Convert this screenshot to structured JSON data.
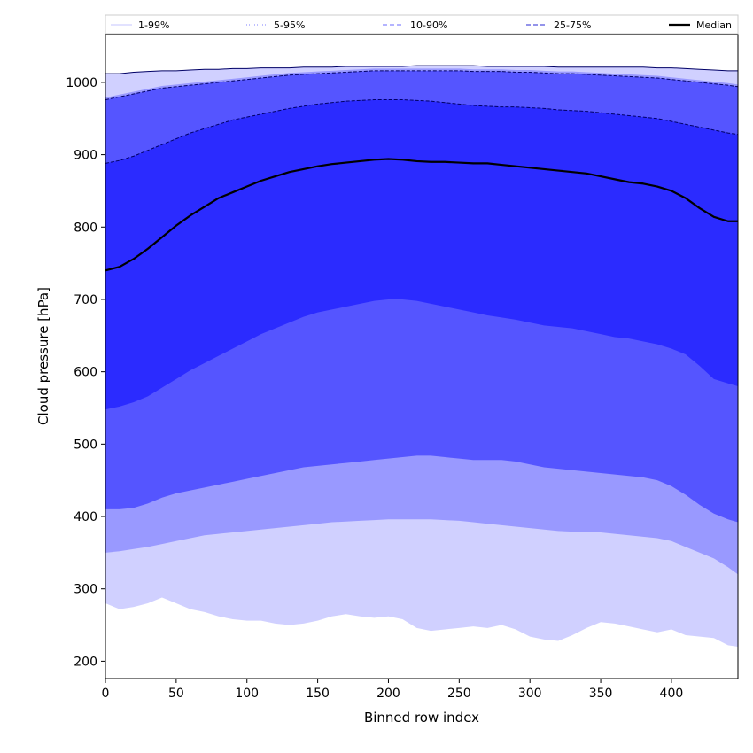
{
  "chart_data": {
    "type": "area",
    "xlabel": "Binned row index",
    "ylabel": "Cloud pressure [hPa]",
    "xlim": [
      0,
      447
    ],
    "ylim": [
      176,
      1066
    ],
    "xticks": [
      0,
      50,
      100,
      150,
      200,
      250,
      300,
      350,
      400
    ],
    "yticks": [
      200,
      300,
      400,
      500,
      600,
      700,
      800,
      900,
      1000
    ],
    "grid": false,
    "legend_position": "top",
    "x": [
      0,
      10,
      20,
      30,
      40,
      50,
      60,
      70,
      80,
      90,
      100,
      110,
      120,
      130,
      140,
      150,
      160,
      170,
      180,
      190,
      200,
      210,
      220,
      230,
      240,
      250,
      260,
      270,
      280,
      290,
      300,
      310,
      320,
      330,
      340,
      350,
      360,
      370,
      380,
      390,
      400,
      410,
      420,
      430,
      440,
      447
    ],
    "series": [
      {
        "name": "1-99%",
        "color": "#d0d0ff",
        "line_style": "solid",
        "lower": [
          280,
          272,
          275,
          280,
          288,
          280,
          272,
          268,
          262,
          258,
          256,
          256,
          252,
          250,
          252,
          256,
          262,
          265,
          262,
          260,
          262,
          258,
          246,
          242,
          244,
          246,
          248,
          246,
          250,
          244,
          234,
          230,
          228,
          236,
          246,
          254,
          252,
          248,
          244,
          240,
          244,
          236,
          234,
          232,
          222,
          220
        ],
        "upper": [
          1012,
          1012,
          1014,
          1015,
          1016,
          1016,
          1017,
          1018,
          1018,
          1019,
          1019,
          1020,
          1020,
          1020,
          1021,
          1021,
          1021,
          1022,
          1022,
          1022,
          1022,
          1022,
          1023,
          1023,
          1023,
          1023,
          1023,
          1022,
          1022,
          1022,
          1022,
          1022,
          1021,
          1021,
          1021,
          1021,
          1021,
          1021,
          1021,
          1020,
          1020,
          1019,
          1018,
          1017,
          1016,
          1016
        ]
      },
      {
        "name": "5-95%",
        "color": "#9999ff",
        "line_style": "dotted",
        "lower": [
          350,
          352,
          355,
          358,
          362,
          366,
          370,
          374,
          376,
          378,
          380,
          382,
          384,
          386,
          388,
          390,
          392,
          393,
          394,
          395,
          396,
          396,
          396,
          396,
          395,
          394,
          392,
          390,
          388,
          386,
          384,
          382,
          380,
          379,
          378,
          378,
          376,
          374,
          372,
          370,
          366,
          358,
          350,
          342,
          330,
          320
        ]
      },
      {
        "name": "10-90%",
        "color": "#5555ff",
        "line_style": "dashed",
        "lower": [
          410,
          410,
          412,
          418,
          426,
          432,
          436,
          440,
          444,
          448,
          452,
          456,
          460,
          464,
          468,
          470,
          472,
          474,
          476,
          478,
          480,
          482,
          484,
          484,
          482,
          480,
          478,
          478,
          478,
          476,
          472,
          468,
          466,
          464,
          462,
          460,
          458,
          456,
          454,
          450,
          442,
          430,
          416,
          404,
          396,
          392
        ],
        "upper": [
          976,
          980,
          984,
          988,
          992,
          994,
          996,
          998,
          1000,
          1002,
          1004,
          1006,
          1008,
          1010,
          1011,
          1012,
          1013,
          1014,
          1015,
          1016,
          1016,
          1016,
          1016,
          1016,
          1016,
          1016,
          1015,
          1015,
          1015,
          1014,
          1014,
          1013,
          1012,
          1012,
          1011,
          1010,
          1009,
          1008,
          1007,
          1006,
          1004,
          1002,
          1000,
          998,
          996,
          994
        ]
      },
      {
        "name": "25-75%",
        "color": "#2b2bff",
        "line_style": "dashed",
        "lower": [
          548,
          552,
          558,
          566,
          578,
          590,
          602,
          612,
          622,
          632,
          642,
          652,
          660,
          668,
          676,
          682,
          686,
          690,
          694,
          698,
          700,
          700,
          698,
          694,
          690,
          686,
          682,
          678,
          675,
          672,
          668,
          664,
          662,
          660,
          656,
          652,
          648,
          646,
          642,
          638,
          632,
          624,
          608,
          590,
          584,
          580
        ],
        "upper": [
          888,
          892,
          898,
          906,
          914,
          922,
          930,
          936,
          942,
          948,
          952,
          956,
          960,
          964,
          967,
          970,
          972,
          974,
          975,
          976,
          976,
          976,
          975,
          974,
          972,
          970,
          968,
          967,
          966,
          966,
          965,
          964,
          962,
          961,
          960,
          958,
          956,
          954,
          952,
          950,
          946,
          942,
          938,
          934,
          930,
          928
        ]
      },
      {
        "name": "Median",
        "color": "#000000",
        "line_style": "solid",
        "values": [
          740,
          745,
          756,
          770,
          786,
          802,
          816,
          828,
          840,
          848,
          856,
          864,
          870,
          876,
          880,
          884,
          887,
          889,
          891,
          893,
          894,
          893,
          891,
          890,
          890,
          889,
          888,
          888,
          886,
          884,
          882,
          880,
          878,
          876,
          874,
          870,
          866,
          862,
          860,
          856,
          850,
          840,
          826,
          814,
          808,
          808
        ]
      }
    ]
  }
}
